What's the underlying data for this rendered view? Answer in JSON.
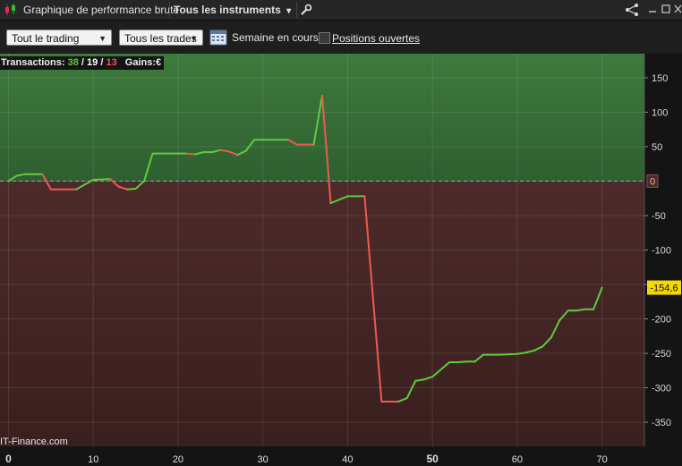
{
  "titlebar": {
    "title": "Graphique de performance brute",
    "instrument_selector": "Tous les instruments",
    "chevron": "▾",
    "icons": [
      "candlestick-icon",
      "wrench-icon",
      "share-icon",
      "minimize-icon",
      "restore-icon",
      "close-icon"
    ]
  },
  "toolbar": {
    "trading_select": "Tout le trading",
    "trades_select": "Tous les trades",
    "period_label": "Semaine en cours",
    "positions_label": "Positions ouvertes",
    "positions_checked": false
  },
  "stats": {
    "label": "Transactions:",
    "total": "38",
    "sep1": "/",
    "winning": "19",
    "sep2": "/",
    "losing": "13",
    "gains_label": "Gains:",
    "currency": "€"
  },
  "watermark": "IT-Finance.com",
  "chart_data": {
    "type": "line",
    "xlim": [
      -1,
      75
    ],
    "ylim": [
      -385,
      185
    ],
    "x_ticks": [
      0,
      10,
      20,
      30,
      40,
      50,
      60,
      70
    ],
    "x_tick_labels": [
      "0",
      "10",
      "20",
      "30",
      "40",
      "50",
      "60",
      "70"
    ],
    "y_ticks": [
      150,
      100,
      50,
      0,
      -50,
      -100,
      -150,
      -200,
      -250,
      -300,
      -350
    ],
    "y_tick_labels": [
      "150",
      "100",
      "50",
      "0",
      "-50",
      "-100",
      "-150",
      "-200",
      "-250",
      "-300",
      "-350"
    ],
    "zero_label": "0",
    "last_value_label": "-154,6",
    "colors": {
      "rising": "#5ecb3e",
      "falling": "#ee5a4e",
      "positive_zone": "#3d7b3d",
      "negative_zone": "#4d2a2a",
      "last_value_badge": "#f5d800"
    },
    "series": [
      {
        "points": [
          [
            0,
            0
          ],
          [
            1,
            8
          ],
          [
            2,
            10
          ],
          [
            4,
            10
          ],
          [
            5,
            -12
          ],
          [
            7,
            -12
          ],
          [
            8,
            -12
          ],
          [
            10,
            2
          ],
          [
            12,
            3
          ],
          [
            13,
            -8
          ],
          [
            14,
            -12
          ],
          [
            15,
            -11
          ],
          [
            16,
            0
          ],
          [
            17,
            40
          ],
          [
            18,
            40
          ],
          [
            19,
            40
          ],
          [
            21,
            40
          ],
          [
            22,
            39
          ],
          [
            23,
            42
          ],
          [
            24,
            42
          ],
          [
            25,
            45
          ],
          [
            26,
            43
          ],
          [
            27,
            38
          ],
          [
            28,
            44
          ],
          [
            29,
            60
          ],
          [
            33,
            60
          ],
          [
            34,
            53
          ],
          [
            36,
            53
          ],
          [
            37,
            124
          ],
          [
            38,
            -32
          ],
          [
            40,
            -22
          ],
          [
            41,
            -22
          ],
          [
            42,
            -22
          ],
          [
            44,
            -320
          ],
          [
            46,
            -320
          ],
          [
            47,
            -315
          ],
          [
            48,
            -290
          ],
          [
            49,
            -288
          ],
          [
            50,
            -284
          ],
          [
            52,
            -263
          ],
          [
            53,
            -263
          ],
          [
            54,
            -262
          ],
          [
            55,
            -262
          ],
          [
            56,
            -252
          ],
          [
            58,
            -252
          ],
          [
            60,
            -251
          ],
          [
            61,
            -249
          ],
          [
            62,
            -246
          ],
          [
            63,
            -240
          ],
          [
            64,
            -227
          ],
          [
            65,
            -202
          ],
          [
            66,
            -188
          ],
          [
            67,
            -188
          ],
          [
            68,
            -186
          ],
          [
            69,
            -186
          ],
          [
            70,
            -154.6
          ]
        ]
      }
    ]
  }
}
